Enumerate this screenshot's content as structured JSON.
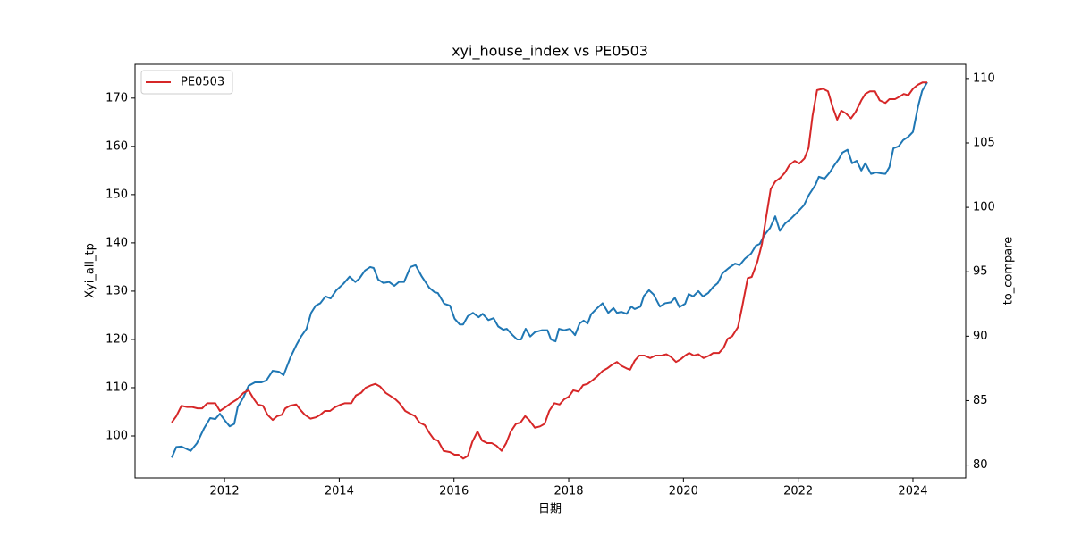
{
  "chart_data": {
    "type": "line",
    "title": "xyi_house_index vs PE0503",
    "xlabel": "日期",
    "ylabel": "Xyi_all_tp",
    "y2label": "to_compare",
    "xlim": [
      2010.44,
      2024.92
    ],
    "xticks": [
      2012,
      2014,
      2016,
      2018,
      2020,
      2022,
      2024
    ],
    "ylim": [
      91.3,
      177.0
    ],
    "yticks": [
      100,
      110,
      120,
      130,
      140,
      150,
      160,
      170
    ],
    "y2lim": [
      79.0,
      111.1
    ],
    "y2ticks": [
      80,
      85,
      90,
      95,
      100,
      105,
      110
    ],
    "legend": "upper left",
    "series": [
      {
        "color": "#1f77b4",
        "x": [
          2011.08,
          2011.16,
          2011.25,
          2011.41,
          2011.52,
          2011.64,
          2011.75,
          2011.84,
          2011.92,
          2012.02,
          2012.09,
          2012.17,
          2012.23,
          2012.33,
          2012.42,
          2012.53,
          2012.64,
          2012.73,
          2012.84,
          2012.95,
          2013.03,
          2013.15,
          2013.26,
          2013.34,
          2013.43,
          2013.51,
          2013.59,
          2013.67,
          2013.76,
          2013.85,
          2013.95,
          2014.07,
          2014.18,
          2014.28,
          2014.35,
          2014.45,
          2014.54,
          2014.6,
          2014.68,
          2014.77,
          2014.87,
          2014.96,
          2015.04,
          2015.13,
          2015.24,
          2015.33,
          2015.44,
          2015.57,
          2015.66,
          2015.72,
          2015.83,
          2015.93,
          2016.01,
          2016.1,
          2016.16,
          2016.24,
          2016.33,
          2016.43,
          2016.5,
          2016.6,
          2016.69,
          2016.77,
          2016.86,
          2016.92,
          2017.02,
          2017.1,
          2017.17,
          2017.25,
          2017.33,
          2017.41,
          2017.53,
          2017.63,
          2017.69,
          2017.77,
          2017.83,
          2017.92,
          2018.02,
          2018.11,
          2018.19,
          2018.26,
          2018.33,
          2018.39,
          2018.48,
          2018.59,
          2018.69,
          2018.78,
          2018.84,
          2018.92,
          2019.01,
          2019.09,
          2019.15,
          2019.25,
          2019.31,
          2019.4,
          2019.48,
          2019.59,
          2019.68,
          2019.78,
          2019.85,
          2019.93,
          2020.03,
          2020.09,
          2020.17,
          2020.26,
          2020.34,
          2020.43,
          2020.52,
          2020.6,
          2020.68,
          2020.79,
          2020.9,
          2020.98,
          2021.07,
          2021.18,
          2021.26,
          2021.33,
          2021.41,
          2021.51,
          2021.6,
          2021.68,
          2021.77,
          2021.88,
          2021.99,
          2022.1,
          2022.19,
          2022.3,
          2022.36,
          2022.46,
          2022.55,
          2022.63,
          2022.71,
          2022.77,
          2022.86,
          2022.94,
          2023.02,
          2023.1,
          2023.17,
          2023.27,
          2023.36,
          2023.45,
          2023.52,
          2023.59,
          2023.66,
          2023.75,
          2023.83,
          2023.92,
          2024.0,
          2024.09,
          2024.16,
          2024.25
        ],
        "values": [
          95.5,
          97.7,
          97.8,
          96.9,
          98.5,
          101.5,
          103.7,
          103.5,
          104.6,
          103,
          102,
          102.5,
          106,
          108,
          110.4,
          111.1,
          111.1,
          111.5,
          113.5,
          113.3,
          112.6,
          116.3,
          119,
          120.7,
          122.2,
          125.5,
          127,
          127.5,
          128.9,
          128.5,
          130.2,
          131.5,
          133,
          131.9,
          132.6,
          134.3,
          135,
          134.8,
          132.4,
          131.7,
          131.9,
          131.1,
          131.9,
          131.9,
          135,
          135.4,
          133,
          130.7,
          129.8,
          129.6,
          127.4,
          127,
          124.3,
          123.1,
          123.1,
          124.8,
          125.5,
          124.6,
          125.3,
          124,
          124.4,
          122.7,
          122,
          122.2,
          120.9,
          120,
          120,
          122.2,
          120.6,
          121.5,
          121.9,
          121.9,
          120,
          119.6,
          122.2,
          121.9,
          122.2,
          120.9,
          123.3,
          123.9,
          123.3,
          125.2,
          126.3,
          127.5,
          125.5,
          126.5,
          125.5,
          125.7,
          125.3,
          126.8,
          126.3,
          126.8,
          129,
          130.2,
          129.3,
          126.8,
          127.5,
          127.7,
          128.6,
          126.7,
          127.4,
          129.4,
          128.9,
          130,
          128.9,
          129.6,
          130.9,
          131.7,
          133.7,
          134.8,
          135.7,
          135.4,
          136.7,
          137.8,
          139.4,
          139.8,
          141.6,
          143.1,
          145.5,
          142.5,
          144,
          145.1,
          146.4,
          147.8,
          150,
          152,
          153.7,
          153.3,
          154.6,
          156.1,
          157.4,
          158.7,
          159.3,
          156.5,
          157,
          155,
          156.5,
          154.3,
          154.6,
          154.4,
          154.3,
          155.7,
          159.6,
          160,
          161.3,
          162,
          163,
          168.3,
          171.5,
          173.3
        ]
      },
      {
        "name": "PE0503",
        "color": "#d62728",
        "axis": "y2",
        "x": [
          2011.08,
          2011.16,
          2011.25,
          2011.35,
          2011.44,
          2011.53,
          2011.61,
          2011.7,
          2011.8,
          2011.84,
          2011.92,
          2012.02,
          2012.11,
          2012.22,
          2012.33,
          2012.42,
          2012.5,
          2012.58,
          2012.67,
          2012.75,
          2012.84,
          2012.92,
          2013.0,
          2013.06,
          2013.14,
          2013.25,
          2013.32,
          2013.4,
          2013.5,
          2013.59,
          2013.67,
          2013.75,
          2013.84,
          2013.93,
          2014.03,
          2014.1,
          2014.21,
          2014.29,
          2014.38,
          2014.46,
          2014.56,
          2014.63,
          2014.71,
          2014.81,
          2014.88,
          2014.98,
          2015.05,
          2015.15,
          2015.23,
          2015.32,
          2015.4,
          2015.49,
          2015.57,
          2015.65,
          2015.72,
          2015.82,
          2015.93,
          2016.01,
          2016.08,
          2016.16,
          2016.24,
          2016.32,
          2016.41,
          2016.49,
          2016.58,
          2016.66,
          2016.74,
          2016.83,
          2016.91,
          2016.99,
          2017.08,
          2017.16,
          2017.24,
          2017.31,
          2017.41,
          2017.5,
          2017.58,
          2017.66,
          2017.75,
          2017.84,
          2017.92,
          2018.0,
          2018.08,
          2018.17,
          2018.25,
          2018.33,
          2018.42,
          2018.5,
          2018.59,
          2018.67,
          2018.76,
          2018.84,
          2018.92,
          2019.01,
          2019.07,
          2019.15,
          2019.23,
          2019.32,
          2019.42,
          2019.51,
          2019.62,
          2019.7,
          2019.78,
          2019.87,
          2019.95,
          2020.03,
          2020.1,
          2020.18,
          2020.26,
          2020.35,
          2020.45,
          2020.52,
          2020.62,
          2020.7,
          2020.77,
          2020.85,
          2020.95,
          2021.02,
          2021.12,
          2021.19,
          2021.29,
          2021.37,
          2021.44,
          2021.52,
          2021.6,
          2021.69,
          2021.77,
          2021.85,
          2021.94,
          2022.02,
          2022.11,
          2022.18,
          2022.25,
          2022.33,
          2022.43,
          2022.52,
          2022.6,
          2022.68,
          2022.75,
          2022.83,
          2022.92,
          2023.0,
          2023.1,
          2023.17,
          2023.25,
          2023.34,
          2023.42,
          2023.52,
          2023.59,
          2023.69,
          2023.77,
          2023.84,
          2023.92,
          2024.0,
          2024.08,
          2024.17,
          2024.25
        ],
        "values": [
          83.3,
          83.8,
          84.6,
          84.5,
          84.5,
          84.4,
          84.4,
          84.8,
          84.8,
          84.8,
          84.2,
          84.5,
          84.8,
          85.1,
          85.6,
          85.8,
          85.2,
          84.7,
          84.6,
          83.9,
          83.5,
          83.8,
          83.9,
          84.4,
          84.6,
          84.7,
          84.3,
          83.9,
          83.6,
          83.7,
          83.9,
          84.2,
          84.2,
          84.5,
          84.7,
          84.8,
          84.8,
          85.4,
          85.6,
          86,
          86.2,
          86.3,
          86.1,
          85.6,
          85.4,
          85.1,
          84.8,
          84.2,
          84,
          83.8,
          83.3,
          83.1,
          82.5,
          82,
          81.9,
          81.1,
          81,
          80.8,
          80.8,
          80.5,
          80.7,
          81.8,
          82.6,
          81.9,
          81.7,
          81.7,
          81.5,
          81.1,
          81.7,
          82.6,
          83.2,
          83.3,
          83.8,
          83.5,
          82.9,
          83,
          83.2,
          84.2,
          84.8,
          84.7,
          85.1,
          85.3,
          85.8,
          85.7,
          86.2,
          86.3,
          86.6,
          86.9,
          87.3,
          87.5,
          87.8,
          88,
          87.7,
          87.5,
          87.4,
          88.1,
          88.5,
          88.5,
          88.3,
          88.5,
          88.5,
          88.6,
          88.4,
          88,
          88.2,
          88.5,
          88.7,
          88.5,
          88.6,
          88.3,
          88.5,
          88.7,
          88.7,
          89.1,
          89.8,
          90,
          90.7,
          92.2,
          94.5,
          94.6,
          95.8,
          97.2,
          99.2,
          101.4,
          102,
          102.3,
          102.7,
          103.3,
          103.6,
          103.4,
          103.8,
          104.6,
          107.1,
          109.1,
          109.2,
          109,
          107.8,
          106.8,
          107.5,
          107.3,
          106.9,
          107.4,
          108.3,
          108.8,
          109,
          109,
          108.3,
          108.1,
          108.4,
          108.4,
          108.6,
          108.8,
          108.7,
          109.2,
          109.5,
          109.7,
          109.7
        ]
      }
    ]
  }
}
